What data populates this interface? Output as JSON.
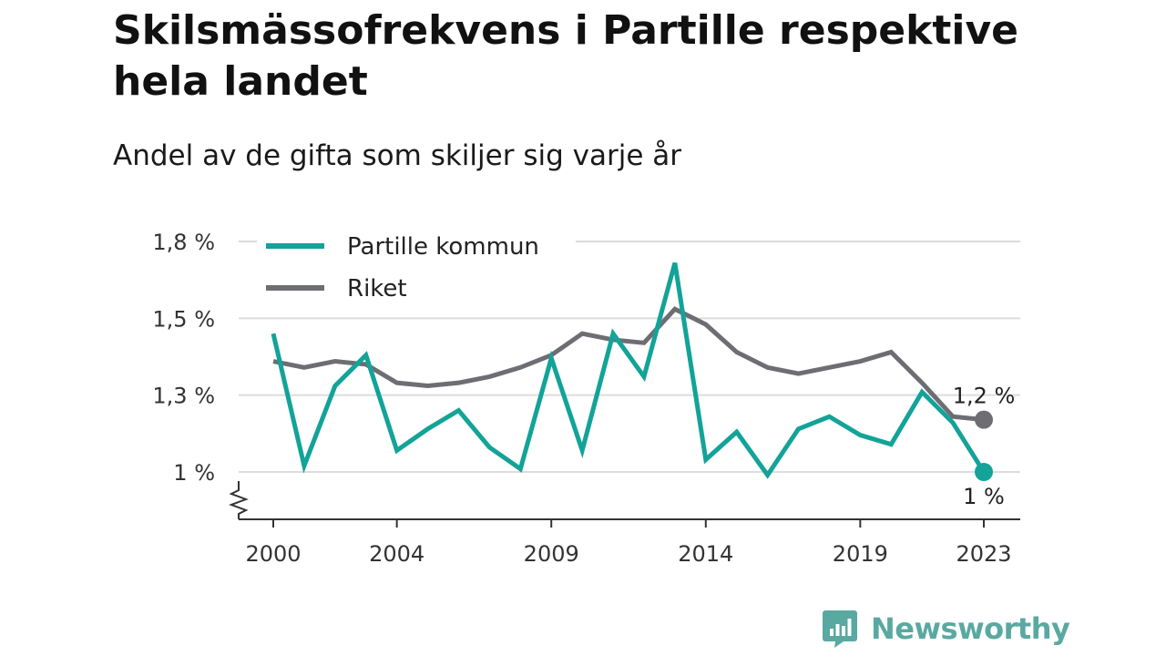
{
  "title": "Skilsmässofrekvens i Partille respektive hela landet",
  "subtitle": "Andel av de gifta som skiljer sig varje år",
  "brand": {
    "name": "Newsworthy",
    "icon": "bar-chart-speech-bubble-icon",
    "color": "#5aa9a1"
  },
  "chart_data": {
    "type": "line",
    "x": [
      2000,
      2001,
      2002,
      2003,
      2004,
      2005,
      2006,
      2007,
      2008,
      2009,
      2010,
      2011,
      2012,
      2013,
      2014,
      2015,
      2016,
      2017,
      2018,
      2019,
      2020,
      2021,
      2022,
      2023
    ],
    "x_ticks": [
      2000,
      2004,
      2009,
      2014,
      2019,
      2023
    ],
    "y_ticks": [
      {
        "value": 1.0,
        "label": "1 %"
      },
      {
        "value": 1.25,
        "label": "1,3 %"
      },
      {
        "value": 1.5,
        "label": "1,5 %"
      },
      {
        "value": 1.75,
        "label": "1,8 %"
      }
    ],
    "ylim": [
      0.84,
      1.79
    ],
    "axis_break": true,
    "grid": true,
    "legend_position": "top-left",
    "series": [
      {
        "name": "Partille kommun",
        "color": "#13a398",
        "values": [
          1.45,
          1.02,
          1.28,
          1.38,
          1.07,
          1.14,
          1.2,
          1.08,
          1.01,
          1.37,
          1.07,
          1.45,
          1.31,
          1.68,
          1.04,
          1.13,
          0.99,
          1.14,
          1.18,
          1.12,
          1.09,
          1.26,
          1.16,
          1.0
        ],
        "end_label": "1 %"
      },
      {
        "name": "Riket",
        "color": "#6e6d73",
        "values": [
          1.36,
          1.34,
          1.36,
          1.35,
          1.29,
          1.28,
          1.29,
          1.31,
          1.34,
          1.38,
          1.45,
          1.43,
          1.42,
          1.53,
          1.48,
          1.39,
          1.34,
          1.32,
          1.34,
          1.36,
          1.39,
          1.29,
          1.18,
          1.17
        ],
        "end_label": "1,2 %"
      }
    ]
  }
}
